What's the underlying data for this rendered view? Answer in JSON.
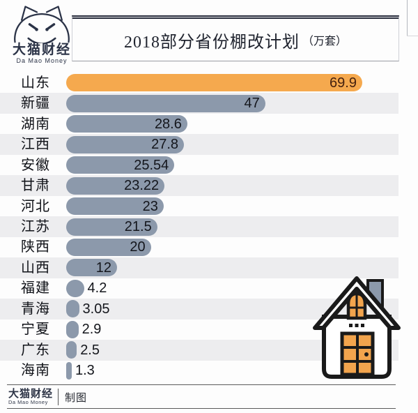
{
  "header": {
    "logo": {
      "cn": "大猫财经",
      "en": "Da Mao Money"
    },
    "title": {
      "main": "2018部分省份棚改计划",
      "unit": "（万套）"
    }
  },
  "chart_data": {
    "type": "bar",
    "orientation": "horizontal",
    "title": "2018部分省份棚改计划（万套）",
    "unit": "万套",
    "categories": [
      "山东",
      "新疆",
      "湖南",
      "江西",
      "安徽",
      "甘肃",
      "河北",
      "江苏",
      "陕西",
      "山西",
      "福建",
      "青海",
      "宁夏",
      "广东",
      "海南"
    ],
    "values": [
      69.9,
      47,
      28.6,
      27.8,
      25.54,
      23.22,
      23,
      21.5,
      20,
      12,
      4.2,
      3.05,
      2.9,
      2.5,
      1.3
    ],
    "value_labels": [
      "69.9",
      "47",
      "28.6",
      "27.8",
      "25.54",
      "23.22",
      "23",
      "21.5",
      "20",
      "12",
      "4.2",
      "3.05",
      "2.9",
      "2.5",
      "1.3"
    ],
    "highlight_index": 0,
    "xlim": [
      0,
      70
    ],
    "grid": false,
    "legend": false,
    "colors": {
      "highlight_bar": "#f5a94e",
      "bar": "#8c99ab",
      "row_stripe": "#ededef",
      "value_text": "#14161c",
      "highlight_value_text": "#45210f"
    }
  },
  "footer": {
    "logo_cn": "大猫财经",
    "logo_en": "Da Mao Money",
    "credit": "制图"
  },
  "icons": {
    "cat_logo": "da-mao-cat-logo",
    "house": "house-icon",
    "house_colors": {
      "outline": "#1a1a1a",
      "fill": "#f2a44d",
      "chimney": "#8c99ab"
    }
  }
}
